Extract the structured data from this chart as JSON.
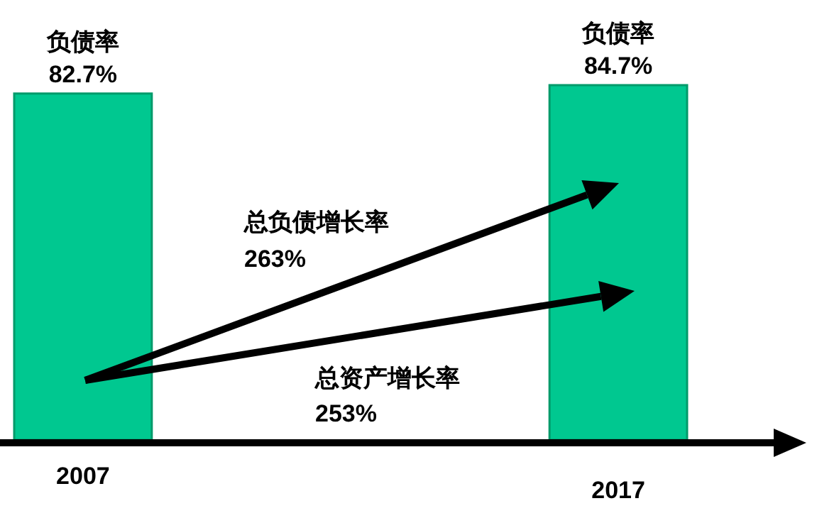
{
  "chart_data": {
    "type": "bar",
    "categories": [
      "2007",
      "2017"
    ],
    "values": [
      82.7,
      84.7
    ],
    "color": "#00c890",
    "value_labels": [
      "82.7%",
      "84.7%"
    ],
    "annotations": [
      {
        "text": "负债率",
        "x": "2007",
        "y": 82.7
      },
      {
        "text": "负债率",
        "x": "2017",
        "y": 84.7
      },
      "总负债增长率",
      "263%",
      "总资产增长率",
      "253%"
    ]
  }
}
